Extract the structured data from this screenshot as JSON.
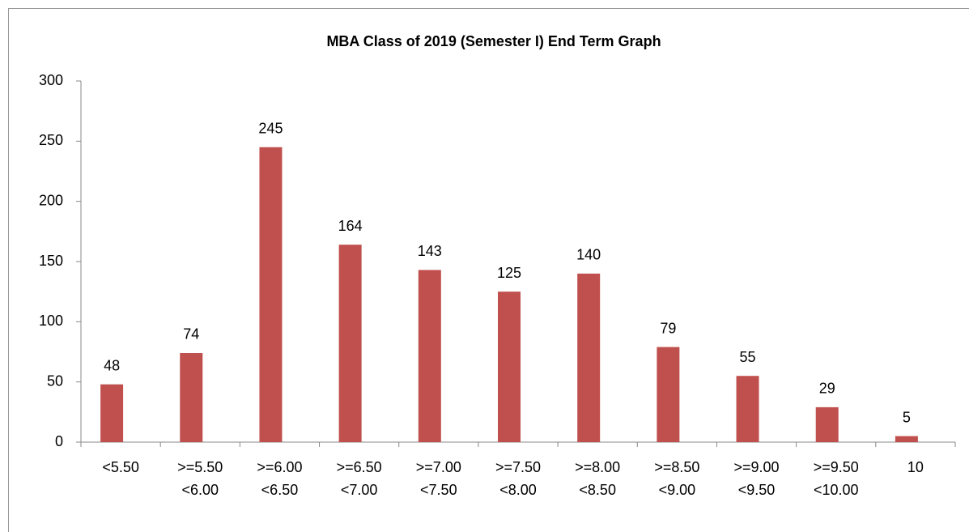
{
  "chart_data": {
    "type": "bar",
    "title": "MBA Class of 2019 (Semester I) End Term Graph",
    "categories": [
      [
        "<5.50"
      ],
      [
        ">=5.50",
        "<6.00"
      ],
      [
        ">=6.00",
        "<6.50"
      ],
      [
        ">=6.50",
        "<7.00"
      ],
      [
        ">=7.00",
        "<7.50"
      ],
      [
        ">=7.50",
        "<8.00"
      ],
      [
        ">=8.00",
        "<8.50"
      ],
      [
        ">=8.50",
        "<9.00"
      ],
      [
        ">=9.00",
        "<9.50"
      ],
      [
        ">=9.50",
        "<10.00"
      ],
      [
        "10"
      ]
    ],
    "values": [
      48,
      74,
      245,
      164,
      143,
      125,
      140,
      79,
      55,
      29,
      5
    ],
    "color": "#c0504d",
    "ylim": [
      0,
      300
    ],
    "yticks": [
      0,
      50,
      100,
      150,
      200,
      250,
      300
    ],
    "grid": false
  }
}
